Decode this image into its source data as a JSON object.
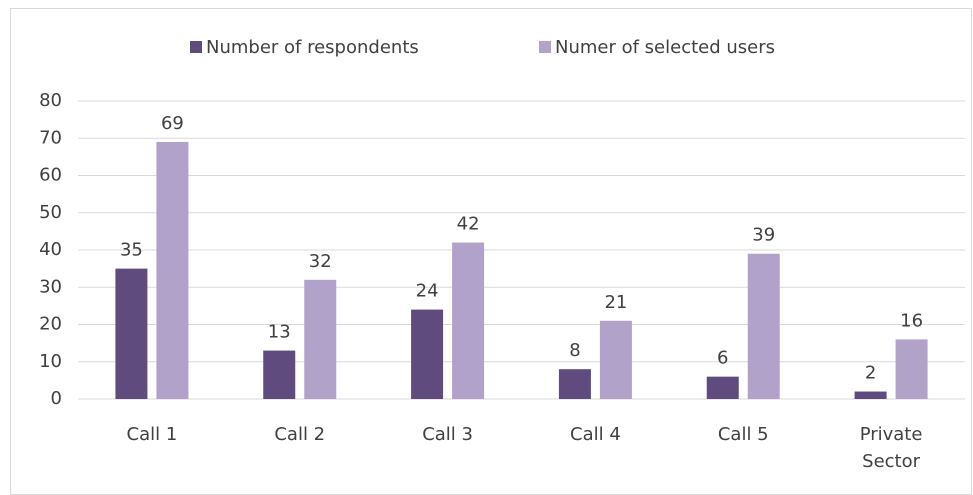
{
  "chart_data": {
    "type": "bar",
    "categories": [
      "Call 1",
      "Call 2",
      "Call 3",
      "Call 4",
      "Call 5",
      "Private Sector"
    ],
    "series": [
      {
        "name": "Number of respondents",
        "color": "#5f4b7d",
        "values": [
          35,
          13,
          24,
          8,
          6,
          2
        ]
      },
      {
        "name": "Numer of selected users",
        "color": "#b1a2c9",
        "values": [
          69,
          32,
          42,
          21,
          39,
          16
        ]
      }
    ],
    "ylim": [
      0,
      80
    ],
    "yticks": [
      0,
      10,
      20,
      30,
      40,
      50,
      60,
      70,
      80
    ],
    "grid": true,
    "legend": "top"
  }
}
